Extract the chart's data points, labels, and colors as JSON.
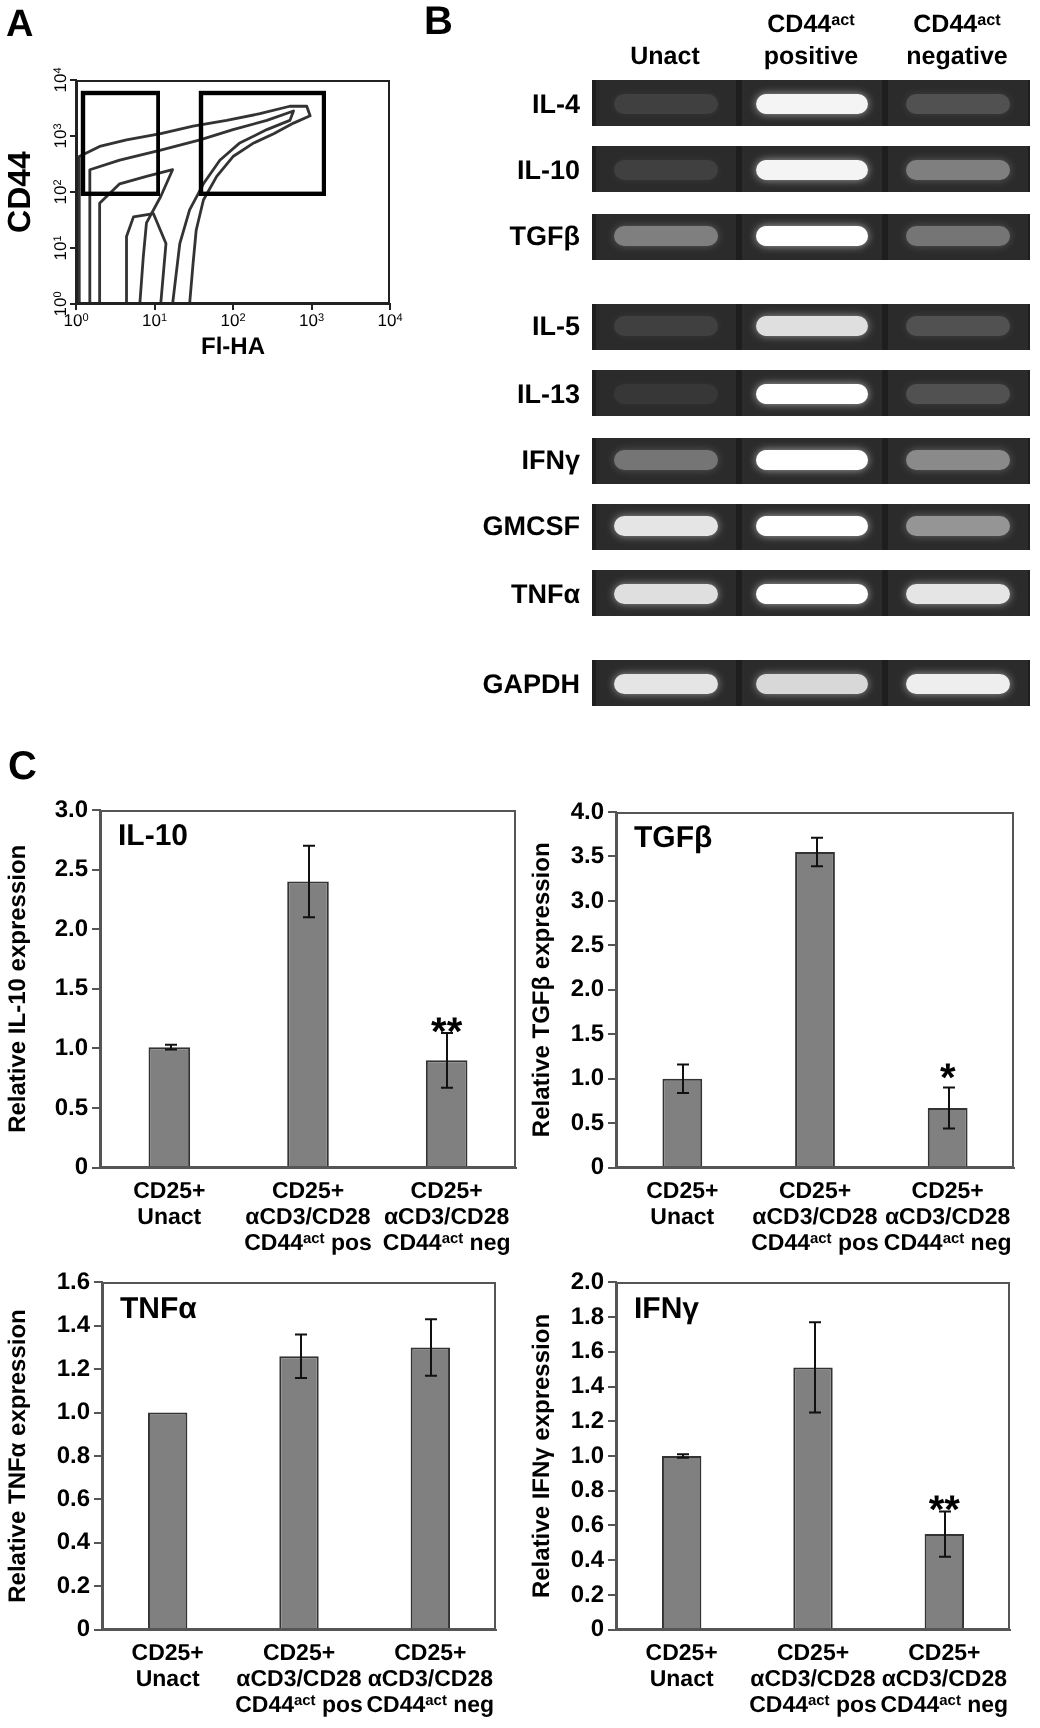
{
  "chart_data": [
    {
      "type": "line",
      "title": "A",
      "xlabel": "Fl-HA",
      "ylabel": "CD44",
      "log": "xy",
      "xlim": [
        1,
        10000
      ],
      "ylim": [
        1,
        10000
      ],
      "xticks": [
        {
          "value": 1,
          "label": "10$^{0}$"
        },
        {
          "value": 10,
          "label": "10$^{1}$"
        },
        {
          "value": 100,
          "label": "10$^{2}$"
        },
        {
          "value": 1000,
          "label": "10$^{3}$"
        },
        {
          "value": 10000,
          "label": "10$^{4}$"
        }
      ],
      "yticks": [
        {
          "value": 1,
          "label": "10$^{0}$"
        },
        {
          "value": 10,
          "label": "10$^{1}$"
        },
        {
          "value": 100,
          "label": "10$^{2}$"
        },
        {
          "value": 1000,
          "label": "10$^{3}$"
        },
        {
          "value": 10000,
          "label": "10$^{4}$"
        }
      ],
      "series": [
        {
          "color": "#333333",
          "x": [
            1.1,
            1.1,
            2,
            4.4,
            12,
            31,
            83,
            220,
            530,
            870,
            960,
            590,
            330,
            180,
            100,
            62,
            42,
            34,
            31,
            28
          ],
          "values": [
            1,
            430,
            650,
            850,
            1100,
            1500,
            1900,
            2500,
            3400,
            3400,
            2300,
            1700,
            1100,
            740,
            430,
            190,
            72,
            21,
            5.3,
            1
          ]
        },
        {
          "color": "#333333",
          "x": [
            1.5,
            1.5,
            3.6,
            12,
            38,
            100,
            270,
            590,
            530,
            270,
            120,
            68,
            42,
            28,
            21,
            17
          ],
          "values": [
            1,
            250,
            370,
            560,
            850,
            1300,
            1900,
            2800,
            1900,
            1300,
            740,
            370,
            140,
            48,
            12,
            1
          ]
        },
        {
          "color": "#333333",
          "x": [
            2,
            2,
            3.6,
            7.9,
            17,
            12,
            7.9,
            7.2,
            6.5
          ],
          "values": [
            1,
            63,
            140,
            190,
            250,
            83,
            28,
            7,
            1
          ]
        },
        {
          "color": "#333333",
          "x": [
            4.4,
            4.4,
            5.4,
            9.7,
            14,
            12
          ],
          "values": [
            1,
            16,
            36,
            41,
            12,
            1
          ]
        }
      ]
    },
    {
      "type": "other",
      "title": "B",
      "categories": [
        "Unact",
        "CD44$^{act}$ positive",
        "CD44$^{act}$ negative"
      ],
      "y_categories": [
        "IL-4",
        "IL-10",
        "TGFβ",
        "IL-5",
        "IL-13",
        "IFNγ",
        "GMCSF",
        "TNFα",
        "GAPDH"
      ]
    },
    {
      "type": "bar",
      "title": "IL-10",
      "ylabel": "Relative IL-10 expression",
      "categories": [
        "CD25+\nUnact",
        "CD25+\nαCD3/CD28\nCD44$^{act}$ pos",
        "CD25+\nαCD3/CD28\nCD44$^{act}$ neg"
      ],
      "values": [
        1.01,
        2.4,
        0.9
      ],
      "errors": [
        0.02,
        0.3,
        0.23
      ],
      "color": "#808080",
      "ylim": [
        0,
        3
      ],
      "yticks": [
        0,
        0.5,
        {
          "value": 1,
          "label": "1.0"
        },
        1.5,
        {
          "value": 2,
          "label": "2.0"
        },
        2.5,
        {
          "value": 3,
          "label": "3.0"
        }
      ],
      "annotations": [
        "C",
        "**"
      ]
    },
    {
      "type": "bar",
      "title": "TGFβ",
      "ylabel": "Relative TGFβ expression",
      "categories": [
        "CD25+\nUnact",
        "CD25+\nαCD3/CD28\nCD44$^{act}$ pos",
        "CD25+\nαCD3/CD28\nCD44$^{act}$ neg"
      ],
      "values": [
        1.0,
        3.55,
        0.67
      ],
      "errors": [
        0.16,
        0.16,
        0.23
      ],
      "color": "#808080",
      "ylim": [
        0,
        4
      ],
      "yticks": [
        0,
        0.5,
        {
          "value": 1,
          "label": "1.0"
        },
        1.5,
        {
          "value": 2,
          "label": "2.0"
        },
        2.5,
        {
          "value": 3,
          "label": "3.0"
        },
        3.5,
        {
          "value": 4,
          "label": "4.0"
        }
      ],
      "annotations": [
        "*"
      ]
    },
    {
      "type": "bar",
      "title": "TNFα",
      "ylabel": "Relative TNFα expression",
      "categories": [
        "CD25+\nUnact",
        "CD25+\nαCD3/CD28\nCD44$^{act}$ pos",
        "CD25+\nαCD3/CD28\nCD44$^{act}$ neg"
      ],
      "values": [
        1.0,
        1.26,
        1.3
      ],
      "errors": [
        null,
        0.1,
        0.13
      ],
      "color": "#808080",
      "ylim": [
        0,
        1.6
      ],
      "yticks": [
        0,
        0.2,
        0.4,
        0.6,
        0.8,
        {
          "value": 1,
          "label": "1.0"
        },
        1.2,
        1.4,
        1.6
      ]
    },
    {
      "type": "bar",
      "title": "IFNγ",
      "ylabel": "Relative IFNγ expression",
      "categories": [
        "CD25+\nUnact",
        "CD25+\nαCD3/CD28\nCD44$^{act}$ pos",
        "CD25+\nαCD3/CD28\nCD44$^{act}$ neg"
      ],
      "values": [
        1.0,
        1.51,
        0.55
      ],
      "errors": [
        0.01,
        0.26,
        0.13
      ],
      "color": "#808080",
      "ylim": [
        0,
        2
      ],
      "yticks": [
        0,
        0.2,
        0.4,
        0.6,
        0.8,
        {
          "value": 1,
          "label": "1.0"
        },
        1.2,
        1.4,
        1.6,
        1.8,
        {
          "value": 2,
          "label": "2.0"
        }
      ],
      "annotations": [
        "**"
      ]
    }
  ]
}
